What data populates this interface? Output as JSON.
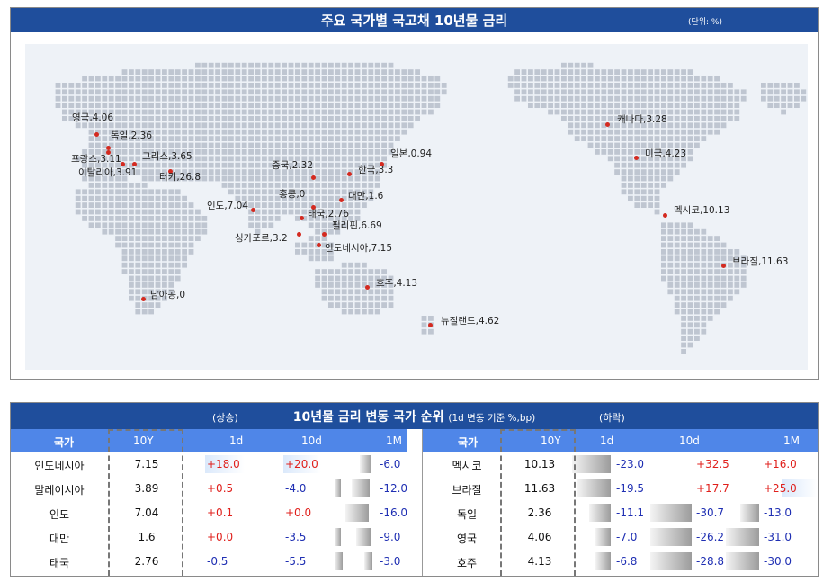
{
  "map": {
    "title": "주요 국가별 국고채 10년물 금리",
    "unit": "(단위:  %)",
    "markers": [
      {
        "label": "영국,4.06"
      },
      {
        "label": "독일,2.36"
      },
      {
        "label": "프랑스,3.11"
      },
      {
        "label": "그리스,3.65"
      },
      {
        "label": "이탈리아,3.91"
      },
      {
        "label": "터키,26.8"
      },
      {
        "label": "인도,7.04"
      },
      {
        "label": "중국,2.32"
      },
      {
        "label": "한국,3.3"
      },
      {
        "label": "일본,0.94"
      },
      {
        "label": "홍콩,0"
      },
      {
        "label": "대만,1.6"
      },
      {
        "label": "태국,2.76"
      },
      {
        "label": "필리핀,6.69"
      },
      {
        "label": "싱가포르,3.2"
      },
      {
        "label": "인도네시아,7.15"
      },
      {
        "label": "호주,4.13"
      },
      {
        "label": "뉴질랜드,4.62"
      },
      {
        "label": "남아공,0"
      },
      {
        "label": "캐나다,3.28"
      },
      {
        "label": "미국,4.23"
      },
      {
        "label": "멕시코,10.13"
      },
      {
        "label": "브라질,11.63"
      }
    ],
    "marker_color": "#d42a20",
    "land_color": "#bfc6d1"
  },
  "ranking": {
    "title": "10년물 금리 변동 국가 순위",
    "subtitle": "(1d 변동 기준 %,bp)",
    "up_label": "(상승)",
    "down_label": "(하락)",
    "columns": {
      "country": "국가",
      "y10": "10Y",
      "d1": "1d",
      "d10": "10d",
      "m1": "1M"
    },
    "rising": [
      {
        "country": "인도네시아",
        "y10": "7.15",
        "d1": "+18.0",
        "d10": "+20.0",
        "m1": "-6.0"
      },
      {
        "country": "말레이시아",
        "y10": "3.89",
        "d1": "+0.5",
        "d10": "-4.0",
        "m1": "-12.0"
      },
      {
        "country": "인도",
        "y10": "7.04",
        "d1": "+0.1",
        "d10": "+0.0",
        "m1": "-16.0"
      },
      {
        "country": "대만",
        "y10": "1.6",
        "d1": "+0.0",
        "d10": "-3.5",
        "m1": "-9.0"
      },
      {
        "country": "태국",
        "y10": "2.76",
        "d1": "-0.5",
        "d10": "-5.5",
        "m1": "-3.0"
      }
    ],
    "falling": [
      {
        "country": "멕시코",
        "y10": "10.13",
        "d1": "-23.0",
        "d10": "+32.5",
        "m1": "+16.0"
      },
      {
        "country": "브라질",
        "y10": "11.63",
        "d1": "-19.5",
        "d10": "+17.7",
        "m1": "+25.0"
      },
      {
        "country": "독일",
        "y10": "2.36",
        "d1": "-11.1",
        "d10": "-30.7",
        "m1": "-13.0"
      },
      {
        "country": "영국",
        "y10": "4.06",
        "d1": "-7.0",
        "d10": "-26.2",
        "m1": "-31.0"
      },
      {
        "country": "호주",
        "y10": "4.13",
        "d1": "-6.8",
        "d10": "-28.8",
        "m1": "-30.0"
      }
    ],
    "positive_color": "#e0201c",
    "negative_color": "#1f2fb3"
  }
}
